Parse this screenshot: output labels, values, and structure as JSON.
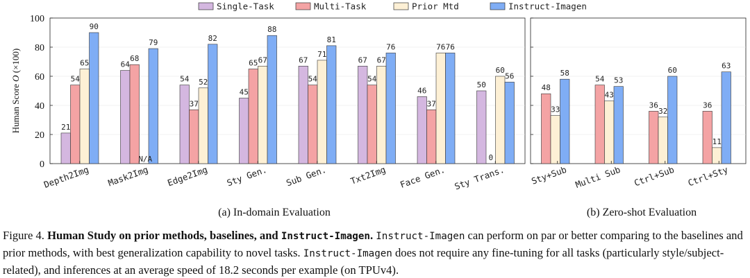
{
  "legend": [
    {
      "name": "Single-Task",
      "color": "#d4b7e0"
    },
    {
      "name": "Multi-Task",
      "color": "#f4a3a4"
    },
    {
      "name": "Prior Mtd",
      "color": "#fdf0d5"
    },
    {
      "name": "Instruct-Imagen",
      "color": "#7fadf5"
    }
  ],
  "chart_data": [
    {
      "type": "bar",
      "title": "(a) In-domain Evaluation",
      "ylabel_prefix": "Human Score ",
      "ylabel_var": "O",
      "ylabel_suffix": " (×100)",
      "ylim": [
        0,
        100
      ],
      "yticks": [
        0,
        20,
        40,
        60,
        80,
        100
      ],
      "categories": [
        "Depth2Img",
        "Mask2Img",
        "Edge2Img",
        "Sty Gen.",
        "Sub Gen.",
        "Txt2Img",
        "Face Gen.",
        "Sty Trans."
      ],
      "series": [
        {
          "name": "Single-Task",
          "values": [
            21,
            64,
            54,
            45,
            67,
            67,
            46,
            50
          ]
        },
        {
          "name": "Multi-Task",
          "values": [
            54,
            68,
            37,
            65,
            54,
            54,
            37,
            0
          ]
        },
        {
          "name": "Prior Mtd",
          "values": [
            65,
            null,
            52,
            67,
            71,
            67,
            76,
            60
          ]
        },
        {
          "name": "Instruct-Imagen",
          "values": [
            90,
            79,
            82,
            88,
            81,
            76,
            76,
            56
          ]
        }
      ],
      "annotations": [
        {
          "category": "Mask2Img",
          "series": "Prior Mtd",
          "text": "N/A"
        }
      ]
    },
    {
      "type": "bar",
      "title": "(b) Zero-shot Evaluation",
      "ylim": [
        0,
        100
      ],
      "categories": [
        "Sty+Sub",
        "Multi Sub",
        "Ctrl+Sub",
        "Ctrl+Sty"
      ],
      "series": [
        {
          "name": "Single-Task",
          "values": [
            null,
            null,
            null,
            null
          ]
        },
        {
          "name": "Multi-Task",
          "values": [
            48,
            54,
            36,
            36
          ]
        },
        {
          "name": "Prior Mtd",
          "values": [
            33,
            43,
            32,
            11
          ]
        },
        {
          "name": "Instruct-Imagen",
          "values": [
            58,
            53,
            60,
            63
          ]
        }
      ]
    }
  ],
  "caption": {
    "label": "Figure 4.",
    "bold_prefix": "Human Study on prior methods, baselines, and ",
    "bold_mono": "Instruct-Imagen",
    "bold_end": ".",
    "mono1": "Instruct-Imagen",
    "text1": " can perform on par or better comparing to the baselines and prior methods, with best generalization capability to novel tasks. ",
    "mono2": "Instruct-Imagen",
    "text2": " does not require any fine-tuning for all tasks (particularly style/subject-related), and inferences at an average speed of 18.2 seconds per example (on TPUv4)."
  }
}
